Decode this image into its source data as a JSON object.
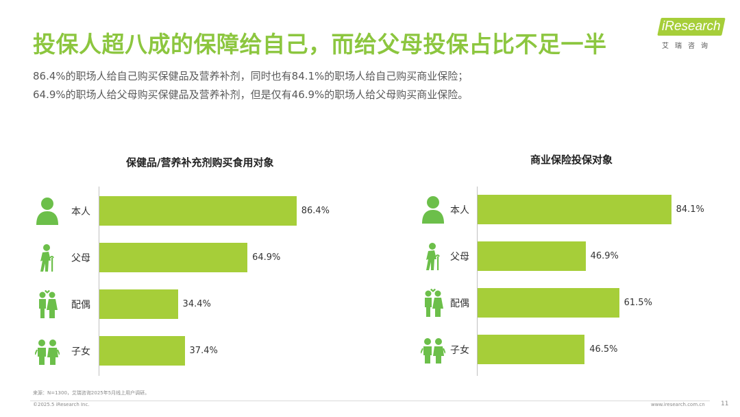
{
  "header": {
    "title": "投保人超八成的保障给自己，而给父母投保占比不足一半",
    "subtitle_line1": "86.4%的职场人给自己购买保健品及营养补剂，同时也有84.1%的职场人给自己购买商业保险；",
    "subtitle_line2": "64.9%的职场人给父母购买保健品及营养补剂，但是仅有46.9%的职场人给父母购买商业保险。"
  },
  "logo": {
    "text": "iResearch",
    "subtext": "艾瑞咨询"
  },
  "accent_color": "#a6ce39",
  "icons": [
    "person-icon",
    "elderly-icon",
    "couple-icon",
    "children-icon"
  ],
  "chart_data": [
    {
      "type": "bar",
      "orientation": "horizontal",
      "title": "保健品/营养补充剂购买食用对象",
      "categories": [
        "本人",
        "父母",
        "配偶",
        "子女"
      ],
      "values": [
        86.4,
        64.9,
        34.4,
        37.4
      ],
      "value_labels": [
        "86.4%",
        "64.9%",
        "34.4%",
        "37.4%"
      ],
      "xlim": [
        0,
        100
      ],
      "color": "#a6ce39"
    },
    {
      "type": "bar",
      "orientation": "horizontal",
      "title": "商业保险投保对象",
      "categories": [
        "本人",
        "父母",
        "配偶",
        "子女"
      ],
      "values": [
        84.1,
        46.9,
        61.5,
        46.5
      ],
      "value_labels": [
        "84.1%",
        "46.9%",
        "61.5%",
        "46.5%"
      ],
      "xlim": [
        0,
        100
      ],
      "color": "#a6ce39"
    }
  ],
  "footer": {
    "source": "来源：N=1300，艾瑞咨询2025年5月线上用户调研。",
    "copyright": "©2025.5 iResearch Inc.",
    "site": "www.iresearch.com.cn",
    "page": "11"
  }
}
